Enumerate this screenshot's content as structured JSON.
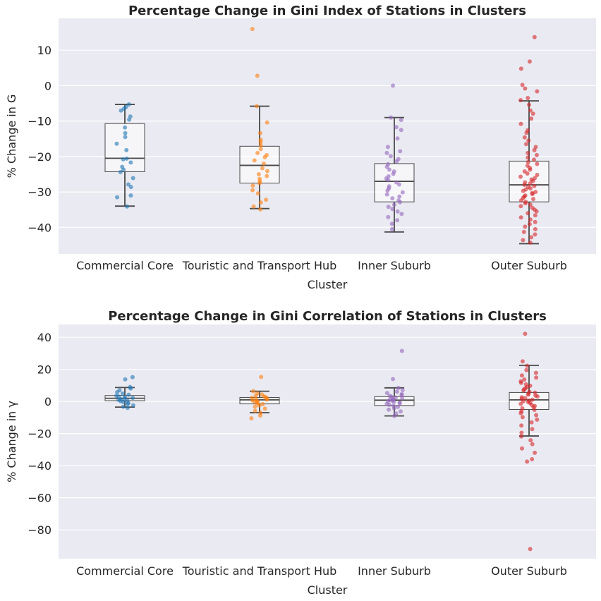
{
  "chart_data": [
    {
      "type": "box",
      "title": "Percentage Change in Gini Index of Stations in Clusters",
      "xlabel": "Cluster",
      "ylabel": "% Change in G",
      "ylim": [
        -47.5,
        19
      ],
      "yticks": [
        10,
        0,
        -10,
        -20,
        -30,
        -40
      ],
      "ytick_labels": [
        "10",
        "0",
        "−10",
        "−20",
        "−30",
        "−40"
      ],
      "grid": true,
      "categories": [
        "Commercial Core",
        "Touristic and Transport Hub",
        "Inner Suburb",
        "Outer Suburb"
      ],
      "colors": [
        "#1f77b4",
        "#ff7f0e",
        "#9467bd",
        "#d62728"
      ],
      "boxes": [
        {
          "whislo": -34,
          "q1": -24.3,
          "med": -20.5,
          "q3": -10.7,
          "whishi": -5.3
        },
        {
          "whislo": -34.7,
          "q1": -27.5,
          "med": -22.5,
          "q3": -17.1,
          "whishi": -5.8
        },
        {
          "whislo": -41.3,
          "q1": -32.8,
          "med": -27,
          "q3": -22,
          "whishi": -9
        },
        {
          "whislo": -44.6,
          "q1": -32.8,
          "med": -28,
          "q3": -21.3,
          "whishi": -4.3
        }
      ],
      "points": [
        [
          -5.3,
          -6.0,
          -6.5,
          -7.0,
          -8.7,
          -9.6,
          -11.8,
          -13.4,
          -14.5,
          -16.4,
          -18.2,
          -20.6,
          -20.8,
          -21.7,
          -22.9,
          -23.7,
          -24.4,
          -26.1,
          -27.9,
          -28.6,
          -31.0,
          -31.5,
          -34.1
        ],
        [
          16.0,
          2.8,
          -5.8,
          -10.4,
          -13.4,
          -15.3,
          -16.0,
          -16.9,
          -17.9,
          -19.0,
          -19.6,
          -20.2,
          -21.1,
          -22.0,
          -23.3,
          -24.1,
          -25.0,
          -25.5,
          -26.3,
          -27.0,
          -27.5,
          -28.2,
          -29.5,
          -30.4,
          -32.2,
          -33.0,
          -34.1,
          -34.9
        ],
        [
          0.0,
          -9.0,
          -9.7,
          -11.7,
          -12.5,
          -14.9,
          -17.3,
          -18.5,
          -19.0,
          -19.9,
          -20.7,
          -21.4,
          -22.2,
          -22.9,
          -23.7,
          -24.2,
          -24.9,
          -25.6,
          -26.2,
          -26.7,
          -27.3,
          -27.9,
          -28.4,
          -29.0,
          -29.6,
          -30.1,
          -30.7,
          -31.3,
          -31.8,
          -32.4,
          -32.9,
          -33.6,
          -34.2,
          -34.8,
          -35.5,
          -36.2,
          -37.1,
          -38.0,
          -39.0,
          -40.5
        ],
        [
          13.7,
          6.8,
          4.8,
          0.2,
          -0.8,
          -1.6,
          -3.5,
          -4.1,
          -5.4,
          -7.0,
          -7.9,
          -9.3,
          -10.8,
          -12.6,
          -13.3,
          -14.6,
          -15.5,
          -16.5,
          -17.3,
          -18.2,
          -19.0,
          -19.6,
          -20.3,
          -20.9,
          -21.6,
          -22.1,
          -22.6,
          -23.2,
          -23.7,
          -24.2,
          -24.8,
          -25.2,
          -25.7,
          -26.1,
          -26.5,
          -26.9,
          -27.3,
          -27.6,
          -28.0,
          -28.3,
          -28.6,
          -29.0,
          -29.3,
          -29.7,
          -30.0,
          -30.3,
          -30.6,
          -31.0,
          -31.3,
          -31.7,
          -32.0,
          -32.4,
          -32.8,
          -33.2,
          -33.6,
          -34.0,
          -34.5,
          -35.0,
          -35.5,
          -36.0,
          -36.6,
          -37.2,
          -37.8,
          -38.5,
          -39.1,
          -39.8,
          -40.5,
          -41.3,
          -42.0,
          -42.8,
          -43.6,
          -44.3
        ]
      ]
    },
    {
      "type": "box",
      "title": "Percentage Change in Gini Correlation of Stations in Clusters",
      "xlabel": "Cluster",
      "ylabel": "% Change in γ",
      "ylim": [
        -98,
        48
      ],
      "yticks": [
        40,
        20,
        0,
        -20,
        -40,
        -60,
        -80
      ],
      "ytick_labels": [
        "40",
        "20",
        "0",
        "−20",
        "−40",
        "−60",
        "−80"
      ],
      "grid": true,
      "categories": [
        "Commercial Core",
        "Touristic and Transport Hub",
        "Inner Suburb",
        "Outer Suburb"
      ],
      "colors": [
        "#1f77b4",
        "#ff7f0e",
        "#9467bd",
        "#d62728"
      ],
      "boxes": [
        {
          "whislo": -3.5,
          "q1": 0.5,
          "med": 2,
          "q3": 3.7,
          "whishi": 8.7
        },
        {
          "whislo": -7,
          "q1": -1.5,
          "med": 1,
          "q3": 2.5,
          "whishi": 6.4
        },
        {
          "whislo": -9,
          "q1": -2.5,
          "med": 0.8,
          "q3": 3,
          "whishi": 8.5
        },
        {
          "whislo": -21.5,
          "q1": -5,
          "med": 1,
          "q3": 5.6,
          "whishi": 22.5
        }
      ],
      "points": [
        [
          15.2,
          13.8,
          9.0,
          8.1,
          7.0,
          5.8,
          4.9,
          4.2,
          3.6,
          3.1,
          2.6,
          2.2,
          1.8,
          1.4,
          1.0,
          0.6,
          0.2,
          -0.3,
          -0.9,
          -1.6,
          -2.4,
          -3.3,
          -4.0
        ],
        [
          15.3,
          6.4,
          5.1,
          4.3,
          3.6,
          3.1,
          2.7,
          2.3,
          1.9,
          1.5,
          1.1,
          0.7,
          0.3,
          -0.1,
          -0.6,
          -1.1,
          -1.7,
          -2.4,
          -3.3,
          -4.5,
          -5.9,
          -7.0,
          -8.8,
          -10.5
        ],
        [
          31.5,
          14.0,
          8.4,
          7.1,
          6.1,
          5.3,
          4.6,
          4.0,
          3.5,
          3.0,
          2.5,
          2.1,
          1.7,
          1.3,
          0.9,
          0.5,
          0.1,
          -0.3,
          -0.7,
          -1.1,
          -1.6,
          -2.1,
          -2.7,
          -3.4,
          -4.2,
          -5.1,
          -6.2,
          -7.5,
          -9.0
        ],
        [
          42.2,
          25.0,
          22.3,
          19.6,
          17.8,
          16.2,
          14.9,
          13.7,
          12.6,
          11.6,
          10.7,
          9.8,
          9.0,
          8.2,
          7.5,
          6.8,
          6.1,
          5.5,
          4.9,
          4.3,
          3.7,
          3.1,
          2.6,
          2.1,
          1.6,
          1.1,
          0.6,
          0.1,
          -0.4,
          -0.9,
          -1.5,
          -2.1,
          -2.8,
          -3.5,
          -4.3,
          -5.2,
          -6.2,
          -7.3,
          -8.5,
          -9.8,
          -11.3,
          -13.0,
          -15.0,
          -17.2,
          -19.5,
          -21.8,
          -24.2,
          -26.6,
          -29.3,
          -32.0,
          -36.0,
          -37.5,
          -92.0
        ]
      ]
    }
  ]
}
